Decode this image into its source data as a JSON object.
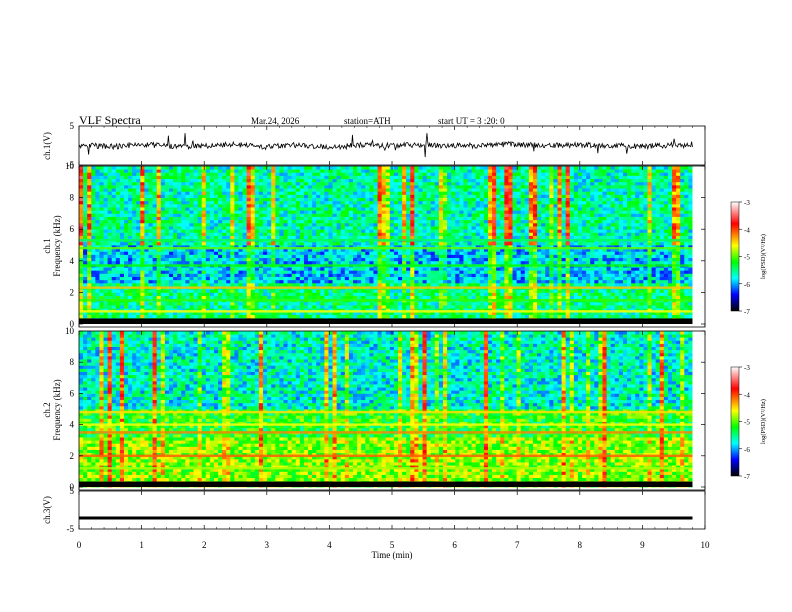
{
  "header": {
    "title": "VLF  Spectra",
    "date": "Mar.24, 2026",
    "station": "station=ATH",
    "start": "start  UT  =   3  :20: 0"
  },
  "colorbar": {
    "label": "log(PSD)(V²/Hz)",
    "ticks": [
      "-3",
      "-4",
      "-5",
      "-6",
      "-7"
    ],
    "colors": [
      "#ffffff",
      "#ff0000",
      "#ffff00",
      "#00ff00",
      "#00ffff",
      "#0000ff",
      "#000000"
    ]
  },
  "chart_data": [
    {
      "type": "line",
      "name": "ch1-waveform",
      "ylabel": "ch.1(V)",
      "ylim": [
        -5,
        5
      ],
      "yticks": [
        "5",
        "-5"
      ],
      "x": [
        0,
        0.5,
        1,
        1.5,
        2,
        2.5,
        3,
        3.5,
        4,
        4.5,
        5,
        5.5,
        6,
        6.5,
        7,
        7.5,
        8,
        8.5,
        9,
        9.5,
        9.8
      ],
      "values": [
        0.1,
        -0.3,
        0.2,
        -0.2,
        -0.1,
        0.3,
        -0.4,
        0.2,
        -0.5,
        0.1,
        0.0,
        0.2,
        -0.1,
        0.1,
        0.3,
        -0.1,
        0.2,
        0.0,
        -0.2,
        0.1,
        0.0
      ]
    },
    {
      "type": "heatmap",
      "name": "ch1-spectrogram",
      "ylabel": "ch.1\nFrequency  (kHz)",
      "ylim": [
        0,
        10
      ],
      "yticks": [
        "0",
        "2",
        "4",
        "6",
        "8",
        "10"
      ],
      "bands": [
        {
          "f": 5.3,
          "level": -5.4
        },
        {
          "f": 4.8,
          "level": -5.0
        },
        {
          "f": 3.7,
          "level": -5.2
        },
        {
          "f": 2.3,
          "level": -4.4
        },
        {
          "f": 1.5,
          "level": -5.1
        },
        {
          "f": 0.8,
          "level": -4.6
        }
      ]
    },
    {
      "type": "heatmap",
      "name": "ch2-spectrogram",
      "ylabel": "ch.2\nFrequency  (kHz)",
      "ylim": [
        0,
        10
      ],
      "yticks": [
        "0",
        "2",
        "4",
        "6",
        "8",
        "10"
      ],
      "bands": [
        {
          "f": 4.8,
          "level": -4.5
        },
        {
          "f": 4.0,
          "level": -4.6
        },
        {
          "f": 3.5,
          "level": -4.2
        },
        {
          "f": 2.0,
          "level": -4.1
        },
        {
          "f": 1.2,
          "level": -4.8
        }
      ]
    },
    {
      "type": "line",
      "name": "ch3-waveform",
      "ylabel": "ch.3(V)",
      "ylim": [
        -5,
        5
      ],
      "yticks": [
        "5",
        "-5"
      ],
      "x": [
        0,
        9.8
      ],
      "values": [
        -2.1,
        -2.1
      ]
    }
  ],
  "xaxis": {
    "label": "Time  (min)",
    "xlim": [
      0,
      10
    ],
    "ticks": [
      "0",
      "1",
      "2",
      "3",
      "4",
      "5",
      "6",
      "7",
      "8",
      "9",
      "10"
    ]
  }
}
